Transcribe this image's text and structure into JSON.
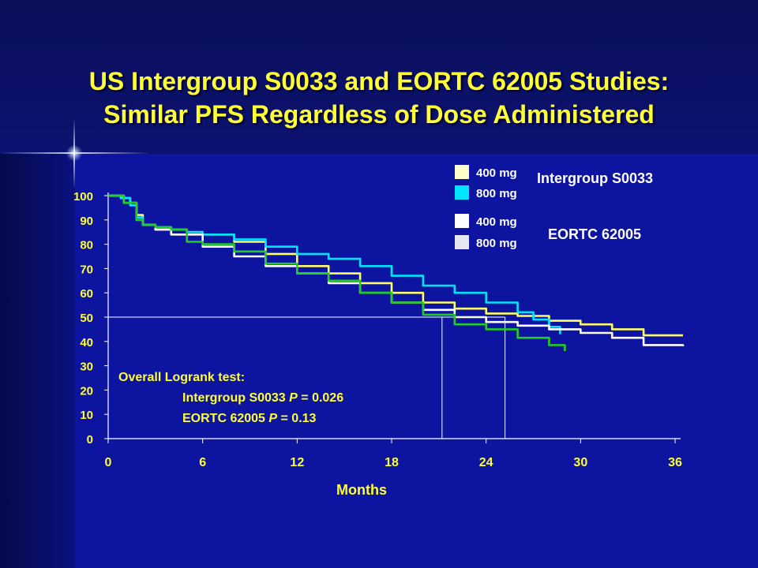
{
  "slide": {
    "title_line1": "US Intergroup S0033 and EORTC 62005 Studies:",
    "title_line2": "Similar PFS Regardless of Dose Administered"
  },
  "colors": {
    "ig_400": "#ffff66",
    "ig_800": "#00e5ff",
    "eortc_400": "#ffffff",
    "eortc_800": "#22cc22",
    "text_yellow": "#ffff33",
    "text_white": "#ffffff"
  },
  "legend": {
    "ig_400_label": "400 mg",
    "ig_800_label": "800 mg",
    "ig_group": "Intergroup S0033",
    "eortc_400_label": "400 mg",
    "eortc_800_label": "800 mg",
    "eortc_group": "EORTC 62005"
  },
  "annotation": {
    "line1": "Overall Logrank test:",
    "line2_prefix": "Intergroup S0033 ",
    "line2_p": "P",
    "line2_value": " = 0.026",
    "line3_prefix": "EORTC 62005 ",
    "line3_p": "P",
    "line3_value": " = 0.13"
  },
  "chart_data": {
    "type": "line",
    "title": "",
    "xlabel": "Months",
    "ylabel": "",
    "xlim": [
      0,
      36
    ],
    "ylim": [
      0,
      100
    ],
    "xticks": [
      "0",
      "6",
      "12",
      "18",
      "24",
      "30",
      "36"
    ],
    "yticks": [
      "0",
      "10",
      "20",
      "30",
      "40",
      "50",
      "60",
      "70",
      "80",
      "90",
      "100"
    ],
    "reference": {
      "y": 50,
      "median_x": [
        21.2,
        25.2
      ]
    },
    "series": [
      {
        "name": "400 mg (Intergroup S0033)",
        "color": "#ffff66",
        "x": [
          0,
          0.8,
          1.4,
          1.8,
          2.2,
          3,
          4,
          5,
          6,
          8,
          10,
          12,
          14,
          16,
          18,
          20,
          22,
          24,
          26,
          28,
          30,
          32,
          34,
          36.5
        ],
        "y": [
          100,
          99,
          97,
          92,
          88,
          87,
          86,
          85,
          84,
          81,
          76,
          71,
          68,
          64,
          60,
          56,
          53.5,
          51.5,
          50.5,
          48.5,
          47,
          45,
          42.5,
          42.5
        ]
      },
      {
        "name": "800 mg (Intergroup S0033)",
        "color": "#00e5ff",
        "x": [
          0,
          0.8,
          1.4,
          1.8,
          2.2,
          3,
          4,
          5,
          6,
          8,
          10,
          12,
          14,
          16,
          18,
          20,
          22,
          24,
          26,
          27,
          28,
          28.7
        ],
        "y": [
          100,
          99,
          96,
          91,
          88,
          87,
          86,
          85,
          84,
          82,
          79,
          76,
          74,
          71,
          67,
          63,
          60,
          56,
          52,
          49,
          46,
          43
        ]
      },
      {
        "name": "400 mg (EORTC 62005)",
        "color": "#ffffff",
        "x": [
          0,
          1,
          1.8,
          2.2,
          3,
          4,
          6,
          8,
          10,
          12,
          14,
          16,
          18,
          20,
          22,
          24,
          26,
          28,
          30,
          32,
          34,
          36.5
        ],
        "y": [
          100,
          97,
          90,
          88,
          86,
          84,
          79,
          75,
          71,
          68,
          64,
          60,
          56,
          53,
          50,
          48,
          46.5,
          45,
          43.5,
          41.5,
          38.5,
          38
        ]
      },
      {
        "name": "800 mg (EORTC 62005)",
        "color": "#22cc22",
        "x": [
          0,
          1,
          1.8,
          2.2,
          3,
          4,
          5,
          6,
          8,
          10,
          12,
          14,
          16,
          18,
          20,
          22,
          24,
          26,
          28,
          29
        ],
        "y": [
          100,
          97,
          90,
          88,
          87,
          86,
          81,
          80,
          77,
          72,
          68,
          65,
          60,
          56,
          51,
          47,
          45,
          41.5,
          38.5,
          36
        ]
      }
    ]
  }
}
